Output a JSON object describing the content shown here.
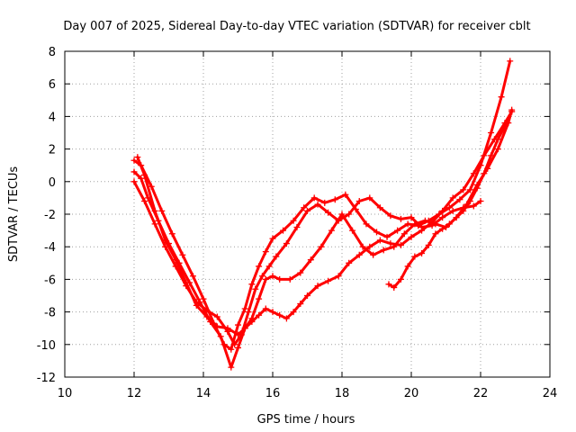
{
  "chart_data": {
    "type": "line",
    "title": "Day 007 of 2025, Sidereal Day-to-day VTEC variation (SDTVAR) for receiver cblt",
    "xlabel": "GPS time / hours",
    "ylabel": "SDTVAR / TECUs",
    "xlim": [
      10,
      24
    ],
    "ylim": [
      -12,
      8
    ],
    "xticks": [
      10,
      12,
      14,
      16,
      18,
      20,
      22,
      24
    ],
    "yticks": [
      -12,
      -10,
      -8,
      -6,
      -4,
      -2,
      0,
      2,
      4,
      6,
      8
    ],
    "xtick_labels": [
      "10",
      "12",
      "14",
      "16",
      "18",
      "20",
      "22",
      "24"
    ],
    "ytick_labels": [
      "-12",
      "-10",
      "-8",
      "-6",
      "-4",
      "-2",
      "0",
      "2",
      "4",
      "6",
      "8"
    ],
    "grid": true,
    "marker": "+",
    "color": "#ff0000",
    "series": [
      {
        "name": "trace-1",
        "x": [
          12.0,
          12.2,
          12.5,
          12.8,
          13.1,
          13.4,
          13.7,
          14.0,
          14.3,
          14.6,
          14.8,
          15.0,
          15.2,
          15.4,
          15.6,
          15.8,
          16.0,
          16.3,
          16.6,
          16.9,
          17.2,
          17.5,
          17.8,
          18.1,
          18.4,
          18.7,
          19.0,
          19.3,
          19.6,
          19.9,
          20.2,
          20.5,
          20.8,
          21.1,
          21.4,
          21.7,
          22.0,
          22.3,
          22.6,
          22.85
        ],
        "y": [
          1.3,
          1.0,
          -0.3,
          -1.8,
          -3.2,
          -4.5,
          -5.8,
          -7.2,
          -8.7,
          -10.0,
          -10.3,
          -8.8,
          -7.8,
          -6.3,
          -5.2,
          -4.3,
          -3.5,
          -3.0,
          -2.4,
          -1.6,
          -1.0,
          -1.3,
          -1.1,
          -0.8,
          -1.7,
          -2.6,
          -3.1,
          -3.4,
          -3.0,
          -2.6,
          -2.7,
          -2.4,
          -2.0,
          -1.6,
          -1.1,
          -0.5,
          1.0,
          3.0,
          5.2,
          7.4
        ]
      },
      {
        "name": "trace-2",
        "x": [
          12.0,
          12.3,
          12.6,
          12.9,
          13.2,
          13.5,
          13.8,
          14.1,
          14.4,
          14.7,
          14.9,
          15.1,
          15.3,
          15.5,
          15.7,
          15.9,
          16.1,
          16.4,
          16.7,
          17.0,
          17.3,
          17.6,
          17.9,
          18.2,
          18.5,
          18.8,
          19.1,
          19.4,
          19.7,
          20.0,
          20.3,
          20.6,
          20.9,
          21.2,
          21.5,
          21.8,
          22.0
        ],
        "y": [
          0.0,
          -1.2,
          -2.6,
          -4.0,
          -5.2,
          -6.4,
          -7.4,
          -7.9,
          -8.3,
          -9.2,
          -10.0,
          -9.4,
          -8.0,
          -6.6,
          -5.8,
          -5.2,
          -4.6,
          -3.8,
          -2.8,
          -1.8,
          -1.4,
          -1.9,
          -2.4,
          -2.0,
          -1.2,
          -1.0,
          -1.6,
          -2.1,
          -2.3,
          -2.2,
          -2.8,
          -2.7,
          -2.2,
          -1.8,
          -1.6,
          -1.5,
          -1.2
        ]
      },
      {
        "name": "trace-3",
        "x": [
          12.0,
          12.2,
          12.4,
          12.7,
          13.0,
          13.3,
          13.6,
          13.9,
          14.2,
          14.5,
          14.8,
          15.0,
          15.2,
          15.4,
          15.6,
          15.8,
          16.0,
          16.2,
          16.4,
          16.6,
          16.8,
          17.0,
          17.3,
          17.6,
          17.9,
          18.2,
          18.5,
          18.8,
          19.1,
          19.4,
          19.7,
          20.0,
          20.3,
          20.6,
          20.9,
          21.2,
          21.5,
          21.8,
          22.1,
          22.4,
          22.7,
          22.9
        ],
        "y": [
          0.6,
          0.2,
          -1.0,
          -2.4,
          -3.8,
          -5.0,
          -6.2,
          -7.4,
          -8.6,
          -9.5,
          -11.4,
          -10.2,
          -9.0,
          -8.6,
          -8.2,
          -7.8,
          -8.0,
          -8.2,
          -8.4,
          -8.0,
          -7.5,
          -7.0,
          -6.4,
          -6.1,
          -5.8,
          -5.0,
          -4.5,
          -4.0,
          -3.6,
          -3.8,
          -3.9,
          -3.4,
          -3.0,
          -2.5,
          -1.8,
          -1.0,
          -0.5,
          0.5,
          1.6,
          2.6,
          3.6,
          4.3
        ]
      },
      {
        "name": "trace-4",
        "x": [
          12.1,
          12.3,
          12.6,
          12.9,
          13.2,
          13.5,
          13.8,
          14.1,
          14.4,
          14.7,
          15.0,
          15.2,
          15.4,
          15.6,
          15.8,
          16.0,
          16.2,
          16.5,
          16.8,
          17.1,
          17.4,
          17.7,
          18.0,
          18.3,
          18.6,
          18.9,
          19.2,
          19.5,
          19.8,
          20.1,
          20.4,
          20.7,
          21.0,
          21.3,
          21.6,
          21.9,
          22.2,
          22.5,
          22.8,
          22.9
        ],
        "y": [
          1.5,
          0.4,
          -1.8,
          -3.6,
          -4.8,
          -6.2,
          -7.6,
          -8.3,
          -8.9,
          -9.0,
          -9.4,
          -9.0,
          -8.4,
          -7.2,
          -6.0,
          -5.8,
          -6.0,
          -6.0,
          -5.6,
          -4.8,
          -4.0,
          -3.0,
          -2.0,
          -3.0,
          -4.0,
          -4.5,
          -4.2,
          -4.0,
          -3.2,
          -2.6,
          -2.4,
          -2.6,
          -2.8,
          -2.2,
          -1.4,
          -0.2,
          0.8,
          2.0,
          3.6,
          4.4
        ]
      },
      {
        "name": "trace-5",
        "x": [
          19.35,
          19.5,
          19.7,
          19.9,
          20.1,
          20.3,
          20.5,
          20.7,
          20.9,
          21.1,
          21.3,
          21.5,
          21.7,
          21.9,
          22.1,
          22.3,
          22.5,
          22.7,
          22.9
        ],
        "y": [
          -6.3,
          -6.5,
          -6.0,
          -5.2,
          -4.6,
          -4.4,
          -3.9,
          -3.2,
          -2.9,
          -2.6,
          -2.2,
          -1.8,
          -1.2,
          -0.4,
          0.5,
          1.6,
          2.6,
          3.4,
          4.3
        ]
      }
    ]
  }
}
